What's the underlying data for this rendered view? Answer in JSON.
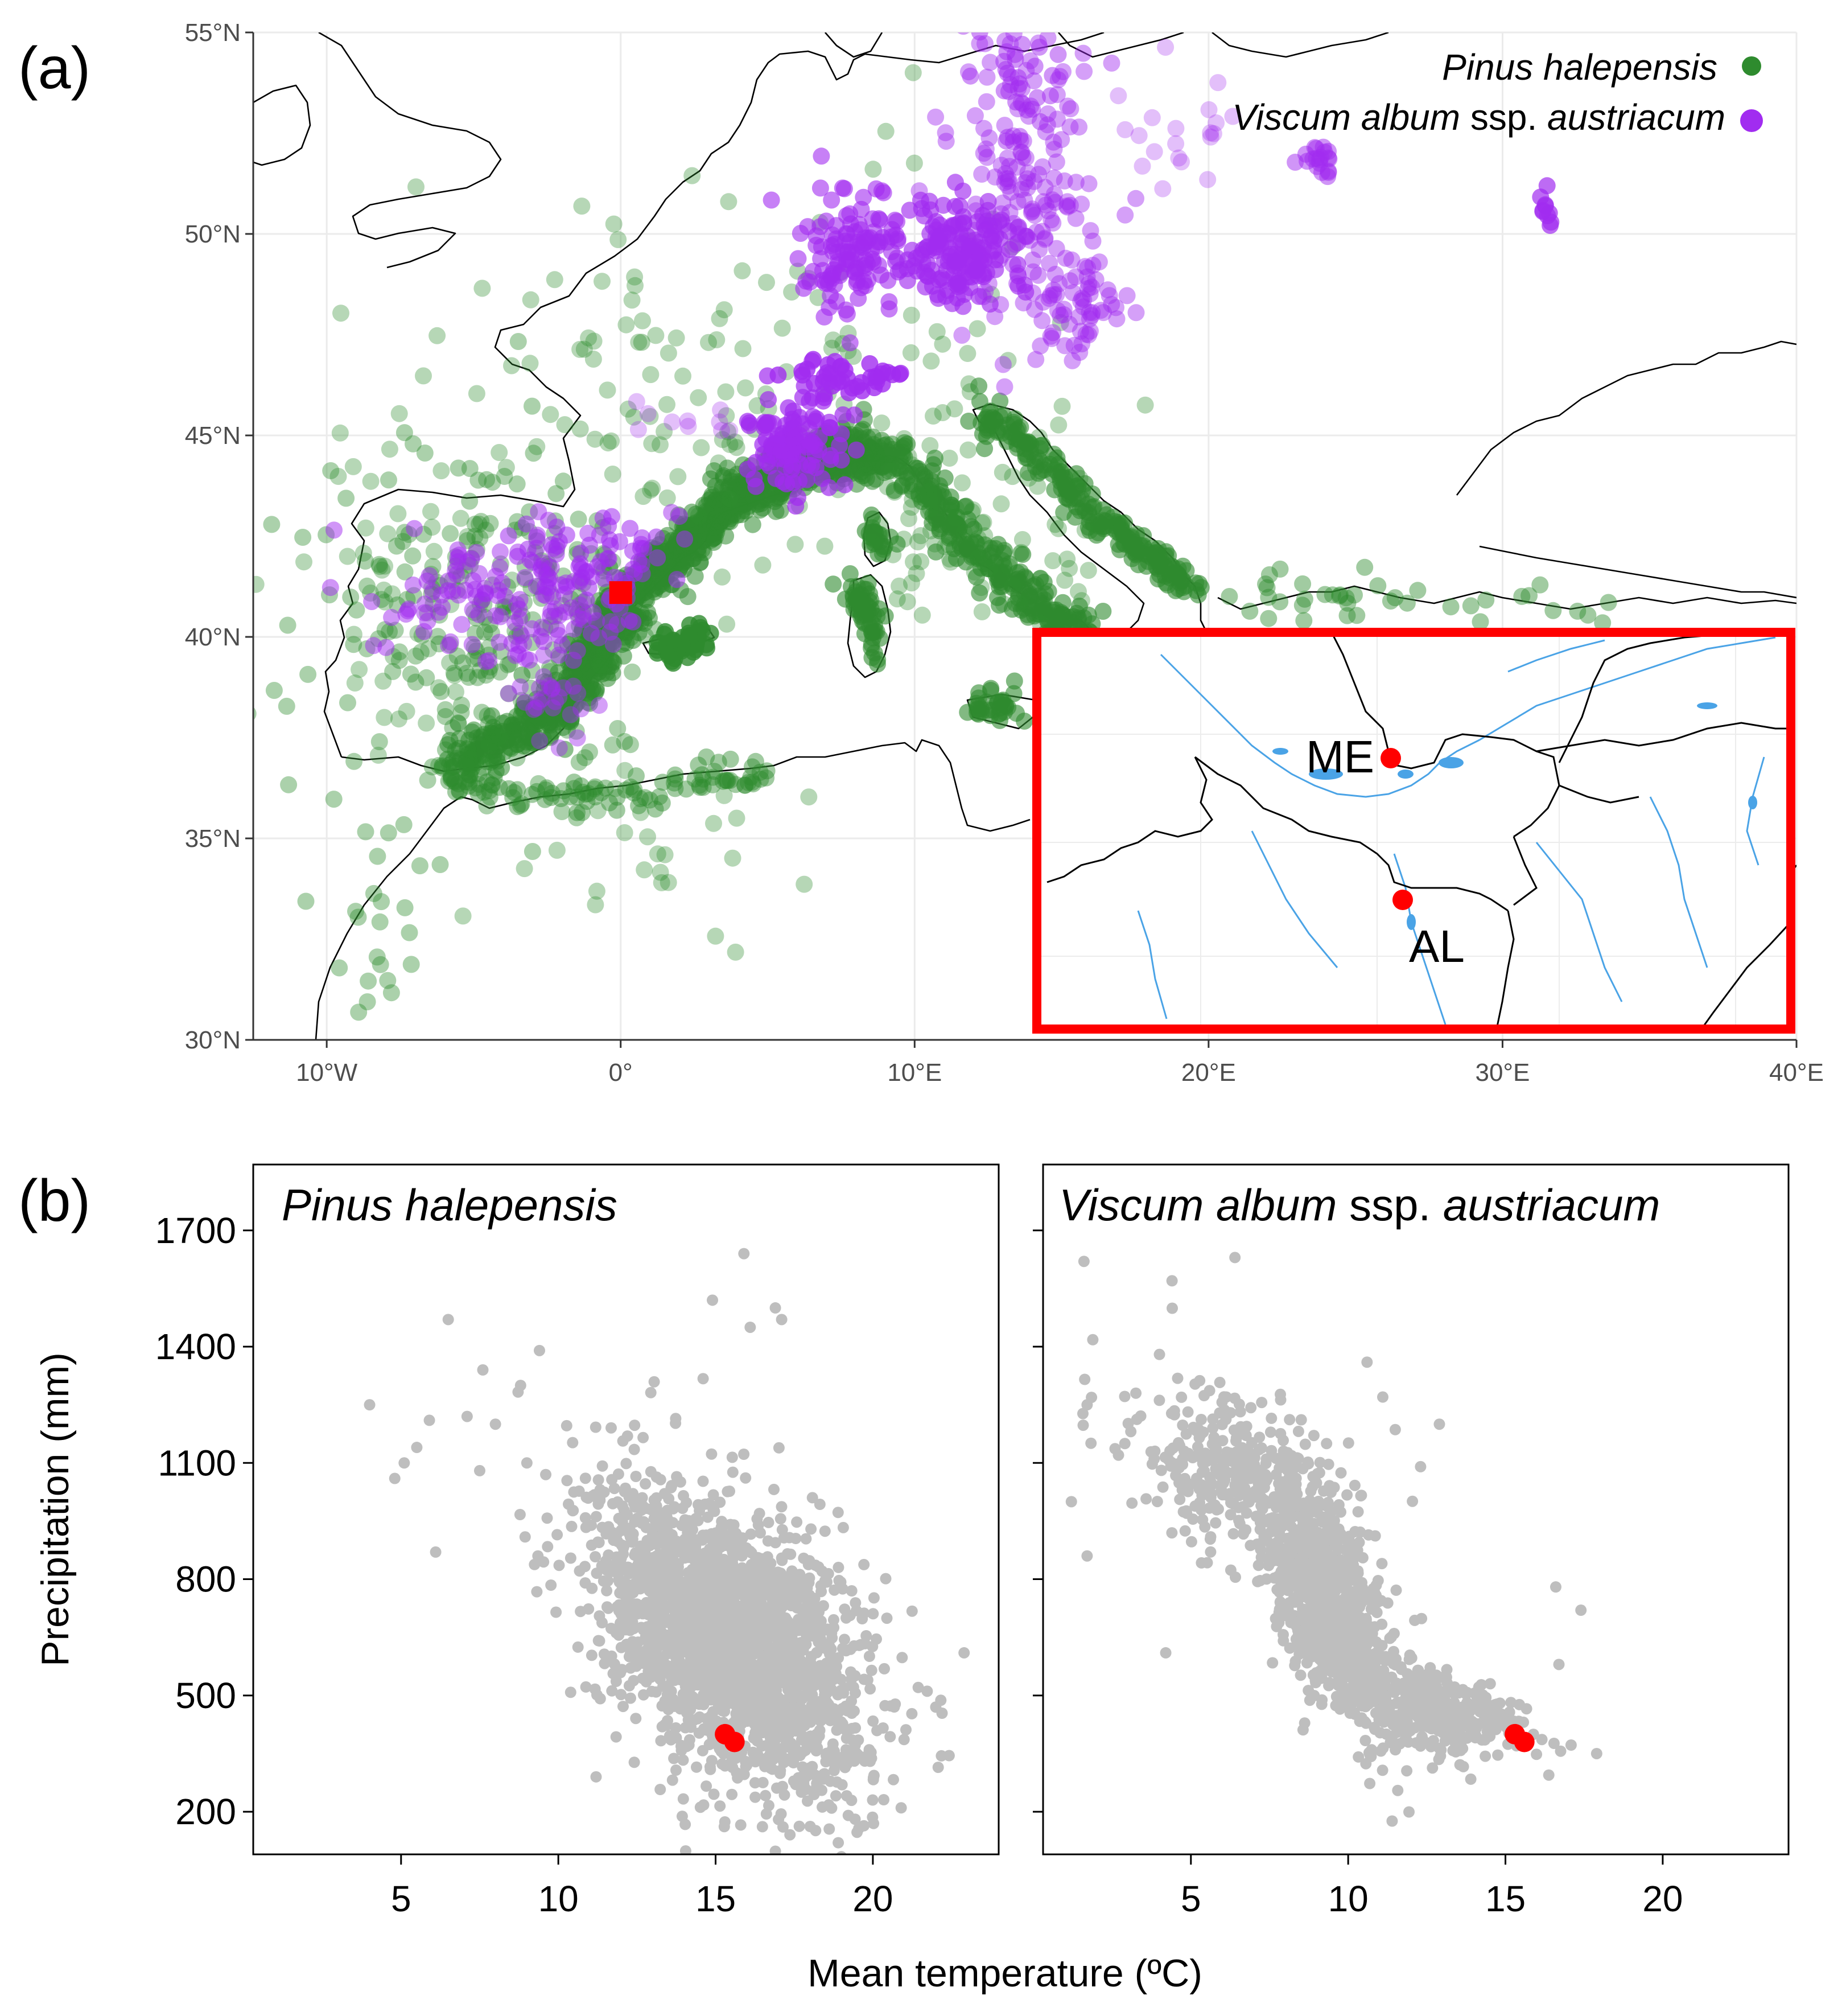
{
  "panel_a": {
    "label": "(a)",
    "legend": [
      {
        "name": "Pinus halepensis",
        "suffix": "",
        "color": "#2e8b2e"
      },
      {
        "name": "Viscum album",
        "suffix": " ssp. ",
        "suffix2": "austriacum",
        "color": "#a12cf0"
      }
    ],
    "x_ticks": [
      "10°W",
      "0°",
      "10°E",
      "20°E",
      "30°E",
      "40°E"
    ],
    "x_values": [
      -10,
      0,
      10,
      20,
      30,
      40
    ],
    "y_ticks": [
      "30°N",
      "35°N",
      "40°N",
      "45°N",
      "50°N",
      "55°N"
    ],
    "y_values": [
      30,
      35,
      40,
      45,
      50,
      55
    ],
    "xlim": [
      -12.5,
      40
    ],
    "ylim": [
      30,
      55
    ],
    "study_site": {
      "lon": 0,
      "lat": 41.1,
      "color": "#ff0000"
    },
    "inset": {
      "border_color": "#ff0000",
      "sites": [
        {
          "label": "ME",
          "color": "#ff0000"
        },
        {
          "label": "AL",
          "color": "#ff0000"
        }
      ]
    }
  },
  "panel_b": {
    "label": "(b)",
    "ylabel": "Precipitation (mm)",
    "xlabel": "Mean temperature (ºC)",
    "chart_data": [
      {
        "type": "scatter",
        "title": "Pinus halepensis",
        "title_suffix": "",
        "title_suffix2": "",
        "x_ticks": [
          5,
          10,
          15,
          20
        ],
        "y_ticks": [
          200,
          500,
          800,
          1100,
          1400,
          1700
        ],
        "xlim": [
          0.3,
          24
        ],
        "ylim": [
          90,
          1870
        ],
        "point_color": "#bebebe",
        "highlight_color": "#ff0000",
        "highlight_points": [
          {
            "x": 15.3,
            "y": 400
          },
          {
            "x": 15.6,
            "y": 380
          }
        ],
        "cloud": [
          {
            "cx": 15.5,
            "cy": 640,
            "sx": 2.1,
            "sy": 190,
            "n": 2300,
            "corr": -0.45
          }
        ],
        "outliers": [
          {
            "x": 4.0,
            "y": 1250
          },
          {
            "x": 4.8,
            "y": 1060
          },
          {
            "x": 5.1,
            "y": 1100
          },
          {
            "x": 5.5,
            "y": 1140
          },
          {
            "x": 5.9,
            "y": 1210
          },
          {
            "x": 6.1,
            "y": 870
          },
          {
            "x": 6.5,
            "y": 1470
          },
          {
            "x": 7.1,
            "y": 1220
          },
          {
            "x": 7.6,
            "y": 1340
          },
          {
            "x": 7.5,
            "y": 1080
          },
          {
            "x": 8.0,
            "y": 1200
          },
          {
            "x": 8.8,
            "y": 1300
          },
          {
            "x": 9.4,
            "y": 1390
          },
          {
            "x": 9.0,
            "y": 1100
          },
          {
            "x": 9.6,
            "y": 1070
          },
          {
            "x": 15.9,
            "y": 1640
          },
          {
            "x": 14.9,
            "y": 1520
          },
          {
            "x": 16.9,
            "y": 1500
          },
          {
            "x": 16.1,
            "y": 1450
          },
          {
            "x": 17.1,
            "y": 1470
          },
          {
            "x": 22.9,
            "y": 610
          },
          {
            "x": 22.0,
            "y": 470
          },
          {
            "x": 20.9,
            "y": 210
          },
          {
            "x": 18.9,
            "y": 120
          },
          {
            "x": 17.0,
            "y": 180
          },
          {
            "x": 11.2,
            "y": 290
          }
        ]
      },
      {
        "type": "scatter",
        "title": "Viscum album",
        "title_suffix": " ssp. ",
        "title_suffix2": "austriacum",
        "x_ticks": [
          5,
          10,
          15,
          20
        ],
        "y_ticks": [
          200,
          500,
          800,
          1100,
          1400,
          1700
        ],
        "xlim": [
          0.3,
          24
        ],
        "ylim": [
          90,
          1870
        ],
        "point_color": "#bebebe",
        "highlight_color": "#ff0000",
        "highlight_points": [
          {
            "x": 15.3,
            "y": 400
          },
          {
            "x": 15.6,
            "y": 380
          }
        ],
        "cloud": [
          {
            "cx": 9.5,
            "cy": 720,
            "sx": 1.0,
            "sy": 150,
            "n": 900,
            "corr": -0.6
          },
          {
            "cx": 12.8,
            "cy": 460,
            "sx": 1.4,
            "sy": 60,
            "n": 350,
            "corr": -0.5
          },
          {
            "cx": 6.5,
            "cy": 1060,
            "sx": 1.8,
            "sy": 110,
            "n": 350,
            "corr": -0.4
          }
        ],
        "outliers": [
          {
            "x": 1.6,
            "y": 1620
          },
          {
            "x": 4.4,
            "y": 1570
          },
          {
            "x": 6.4,
            "y": 1630
          },
          {
            "x": 1.7,
            "y": 1250
          },
          {
            "x": 1.2,
            "y": 1000
          },
          {
            "x": 1.7,
            "y": 860
          },
          {
            "x": 2.9,
            "y": 1150
          },
          {
            "x": 4.0,
            "y": 1380
          },
          {
            "x": 4.2,
            "y": 610
          },
          {
            "x": 10.6,
            "y": 1360
          },
          {
            "x": 11.1,
            "y": 1270
          },
          {
            "x": 12.9,
            "y": 1200
          },
          {
            "x": 16.6,
            "y": 780
          },
          {
            "x": 17.4,
            "y": 720
          },
          {
            "x": 17.9,
            "y": 350
          },
          {
            "x": 16.7,
            "y": 580
          }
        ]
      }
    ]
  }
}
